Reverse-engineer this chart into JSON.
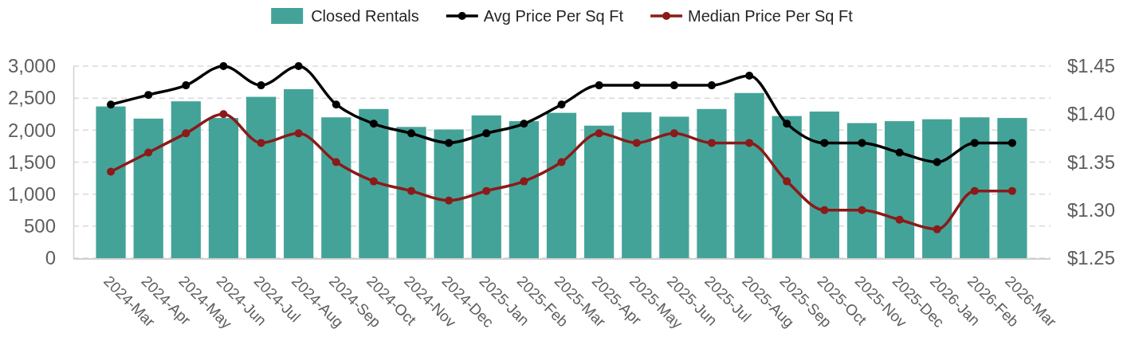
{
  "chart_data": {
    "type": "bar",
    "categories": [
      "2024-Mar",
      "2024-Apr",
      "2024-May",
      "2024-Jun",
      "2024-Jul",
      "2024-Aug",
      "2024-Sep",
      "2024-Oct",
      "2024-Nov",
      "2024-Dec",
      "2025-Jan",
      "2025-Feb",
      "2025-Mar",
      "2025-Apr",
      "2025-May",
      "2025-Jun",
      "2025-Jul",
      "2025-Aug",
      "2025-Sep",
      "2025-Oct",
      "2025-Nov",
      "2025-Dec",
      "2026-Jan",
      "2026-Feb",
      "2026-Mar"
    ],
    "series": [
      {
        "name": "Closed Rentals",
        "color": "#44a398",
        "values": [
          2370,
          2180,
          2450,
          2190,
          2520,
          2640,
          2200,
          2330,
          2050,
          2010,
          2230,
          2140,
          2270,
          2070,
          2280,
          2210,
          2330,
          2580,
          2220,
          2290,
          2110,
          2140,
          2170,
          2200,
          2190
        ]
      },
      {
        "name": "Avg Price Per Sq Ft",
        "type": "line",
        "axis": "y2",
        "color": "#000000",
        "values": [
          1.41,
          1.42,
          1.43,
          1.45,
          1.43,
          1.45,
          1.41,
          1.39,
          1.38,
          1.37,
          1.38,
          1.39,
          1.41,
          1.43,
          1.43,
          1.43,
          1.43,
          1.44,
          1.39,
          1.37,
          1.37,
          1.36,
          1.35,
          1.37,
          1.37
        ]
      },
      {
        "name": "Median Price Per Sq Ft",
        "type": "line",
        "axis": "y2",
        "color": "#8b1a1a",
        "values": [
          1.34,
          1.36,
          1.38,
          1.4,
          1.37,
          1.38,
          1.35,
          1.33,
          1.32,
          1.31,
          1.32,
          1.33,
          1.35,
          1.38,
          1.37,
          1.38,
          1.37,
          1.37,
          1.33,
          1.3,
          1.3,
          1.29,
          1.28,
          1.32,
          1.32
        ]
      }
    ],
    "ylim": [
      0,
      3000
    ],
    "yticks": [
      0,
      500,
      {
        "value": 1000,
        "label": "1,000"
      },
      {
        "value": 1500,
        "label": "1,500"
      },
      {
        "value": 2000,
        "label": "2,000"
      },
      {
        "value": 2500,
        "label": "2,500"
      },
      {
        "value": 3000,
        "label": "3,000"
      }
    ],
    "y2lim": [
      1.25,
      1.45
    ],
    "y2ticks": [
      {
        "value": 1.25,
        "label": "$1.25"
      },
      {
        "value": 1.3,
        "label": "$1.30"
      },
      {
        "value": 1.35,
        "label": "$1.35"
      },
      {
        "value": 1.4,
        "label": "$1.40"
      },
      {
        "value": 1.45,
        "label": "$1.45"
      }
    ],
    "grid": "y",
    "legend": "top",
    "marker": "circle",
    "line_style": "solid"
  }
}
